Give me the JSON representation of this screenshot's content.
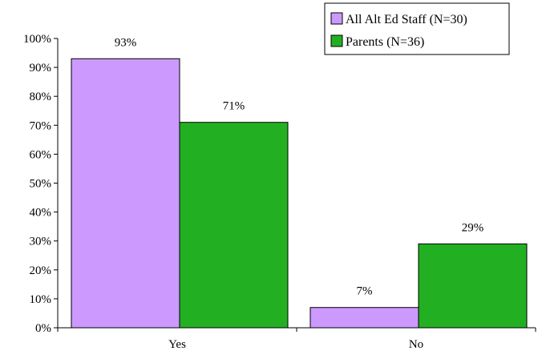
{
  "chart_data": {
    "type": "bar",
    "categories": [
      "Yes",
      "No"
    ],
    "series": [
      {
        "name": "All Alt Ed Staff (N=30)",
        "values": [
          93,
          7
        ],
        "labels": [
          "93%",
          "7%"
        ],
        "color": "#cc99ff"
      },
      {
        "name": "Parents (N=36)",
        "values": [
          71,
          29
        ],
        "labels": [
          "71%",
          "29%"
        ],
        "color": "#22b022"
      }
    ],
    "ylim": [
      0,
      100
    ],
    "yticks": [
      "0%",
      "10%",
      "20%",
      "30%",
      "40%",
      "50%",
      "60%",
      "70%",
      "80%",
      "90%",
      "100%"
    ],
    "grid": false,
    "legend_position": "top-right"
  }
}
